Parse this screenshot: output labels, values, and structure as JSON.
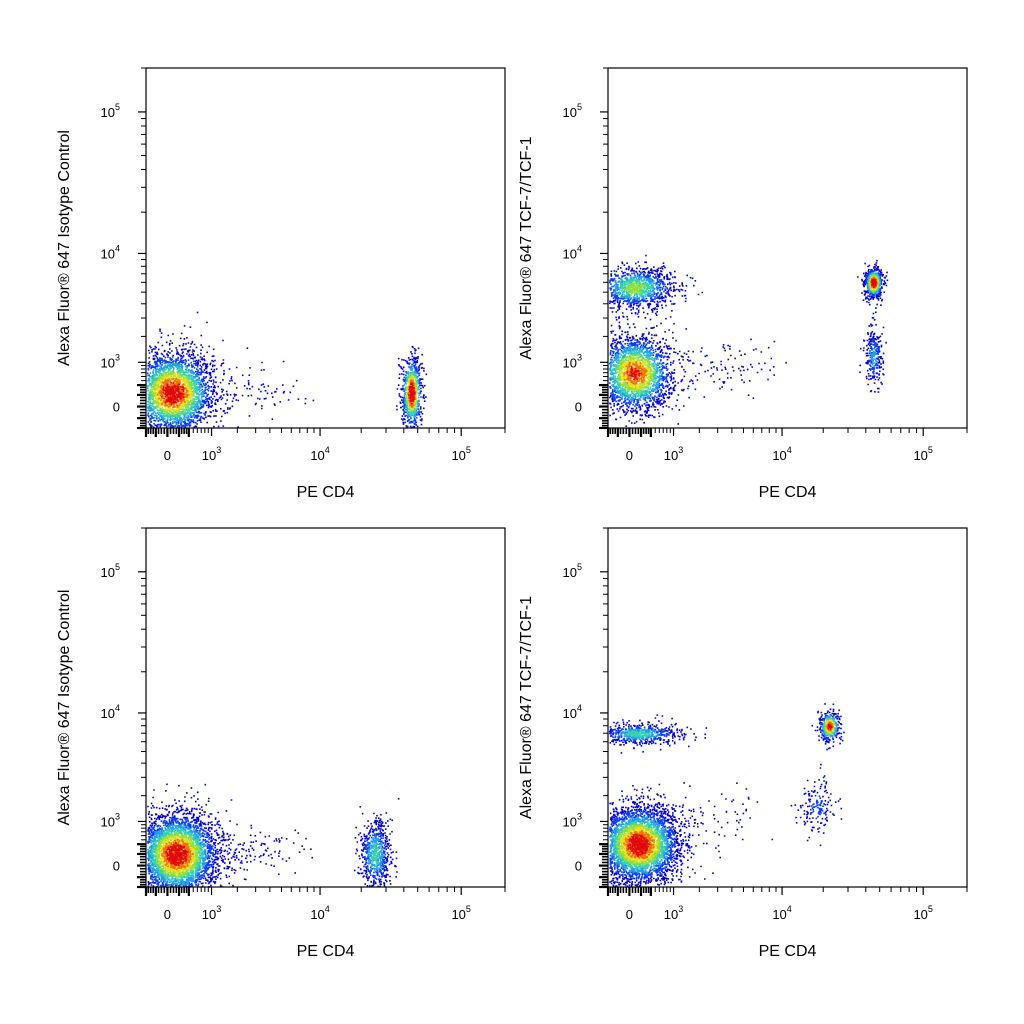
{
  "figure": {
    "axis_ticks": {
      "x": [
        {
          "value": 0,
          "base": "0",
          "exp": ""
        },
        {
          "value": 1000,
          "base": "10",
          "exp": "3"
        },
        {
          "value": 10000,
          "base": "10",
          "exp": "4"
        },
        {
          "value": 100000,
          "base": "10",
          "exp": "5"
        }
      ],
      "y": [
        {
          "value": 0,
          "base": "0",
          "exp": ""
        },
        {
          "value": 1000,
          "base": "10",
          "exp": "3"
        },
        {
          "value": 10000,
          "base": "10",
          "exp": "4"
        },
        {
          "value": 100000,
          "base": "10",
          "exp": "5"
        }
      ]
    },
    "density_colors": [
      "#0000d0",
      "#0a3cf0",
      "#1fa0e8",
      "#35d2b0",
      "#9be030",
      "#f0e020",
      "#f07010",
      "#e00808"
    ]
  },
  "chart_data": [
    {
      "type": "scatter",
      "scale": "biexponential",
      "xlabel": "PE CD4",
      "ylabel": "Alexa Fluor® 647 Isotype Control",
      "xlim": [
        -400,
        200000
      ],
      "ylim": [
        -400,
        200000
      ],
      "grid": false,
      "populations": [
        {
          "x": 80,
          "y": 250,
          "sx": 0.14,
          "sy": 0.14,
          "n": 3400,
          "peak": 0.95
        },
        {
          "x": 45000,
          "y": 250,
          "sx": 0.035,
          "sy": 0.12,
          "n": 850,
          "peak": 1.0
        },
        {
          "x": 3000,
          "y": 300,
          "sx": 0.18,
          "sy": 0.07,
          "n": 70,
          "peak": 0.05
        }
      ]
    },
    {
      "type": "scatter",
      "scale": "biexponential",
      "xlabel": "PE CD4",
      "ylabel": "Alexa Fluor® 647 TCF-7/TCF-1",
      "xlim": [
        -400,
        200000
      ],
      "ylim": [
        -400,
        200000
      ],
      "grid": false,
      "populations": [
        {
          "x": 80,
          "y": 700,
          "sx": 0.13,
          "sy": 0.13,
          "n": 2600,
          "peak": 0.85
        },
        {
          "x": 80,
          "y": 5500,
          "sx": 0.14,
          "sy": 0.07,
          "n": 1200,
          "peak": 0.55
        },
        {
          "x": 45000,
          "y": 6000,
          "sx": 0.03,
          "sy": 0.05,
          "n": 700,
          "peak": 1.0
        },
        {
          "x": 45000,
          "y": 1200,
          "sx": 0.03,
          "sy": 0.1,
          "n": 260,
          "peak": 0.3
        },
        {
          "x": 3500,
          "y": 900,
          "sx": 0.18,
          "sy": 0.09,
          "n": 90,
          "peak": 0.05
        }
      ]
    },
    {
      "type": "scatter",
      "scale": "biexponential",
      "xlabel": "PE CD4",
      "ylabel": "Alexa Fluor® 647 Isotype Control",
      "xlim": [
        -400,
        200000
      ],
      "ylim": [
        -400,
        200000
      ],
      "grid": false,
      "populations": [
        {
          "x": 150,
          "y": 200,
          "sx": 0.14,
          "sy": 0.14,
          "n": 4200,
          "peak": 0.95
        },
        {
          "x": 25000,
          "y": 200,
          "sx": 0.05,
          "sy": 0.12,
          "n": 700,
          "peak": 0.45
        },
        {
          "x": 3000,
          "y": 250,
          "sx": 0.2,
          "sy": 0.08,
          "n": 110,
          "peak": 0.05
        }
      ]
    },
    {
      "type": "scatter",
      "scale": "biexponential",
      "xlabel": "PE CD4",
      "ylabel": "Alexa Fluor® 647 TCF-7/TCF-1",
      "xlim": [
        -400,
        200000
      ],
      "ylim": [
        -400,
        200000
      ],
      "grid": false,
      "populations": [
        {
          "x": 150,
          "y": 400,
          "sx": 0.14,
          "sy": 0.13,
          "n": 4200,
          "peak": 0.95
        },
        {
          "x": 150,
          "y": 7000,
          "sx": 0.14,
          "sy": 0.035,
          "n": 650,
          "peak": 0.45
        },
        {
          "x": 22000,
          "y": 8000,
          "sx": 0.035,
          "sy": 0.05,
          "n": 420,
          "peak": 0.9
        },
        {
          "x": 18000,
          "y": 1500,
          "sx": 0.06,
          "sy": 0.1,
          "n": 160,
          "peak": 0.2
        },
        {
          "x": 3000,
          "y": 1200,
          "sx": 0.2,
          "sy": 0.1,
          "n": 70,
          "peak": 0.05
        }
      ]
    }
  ]
}
